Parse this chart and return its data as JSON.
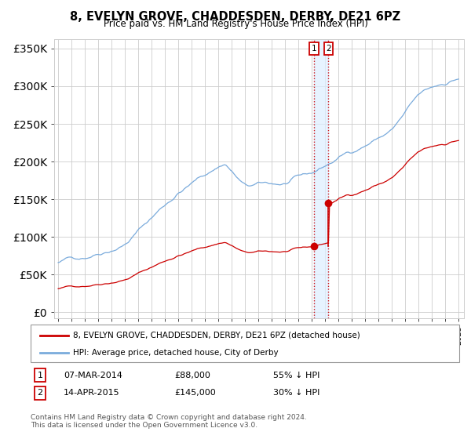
{
  "title": "8, EVELYN GROVE, CHADDESDEN, DERBY, DE21 6PZ",
  "subtitle": "Price paid vs. HM Land Registry's House Price Index (HPI)",
  "yticks": [
    0,
    50000,
    100000,
    150000,
    200000,
    250000,
    300000,
    350000
  ],
  "sale1_date": "07-MAR-2014",
  "sale1_price": 88000,
  "sale1_pct": "55% ↓ HPI",
  "sale2_date": "14-APR-2015",
  "sale2_price": 145000,
  "sale2_pct": "30% ↓ HPI",
  "sale1_year": 2014.18,
  "sale2_year": 2015.29,
  "red_line_color": "#cc0000",
  "blue_line_color": "#7aabdc",
  "marker_color": "#cc0000",
  "vline_color": "#cc0000",
  "shade_color": "#ddeeff",
  "legend_label_red": "8, EVELYN GROVE, CHADDESDEN, DERBY, DE21 6PZ (detached house)",
  "legend_label_blue": "HPI: Average price, detached house, City of Derby",
  "footer": "Contains HM Land Registry data © Crown copyright and database right 2024.\nThis data is licensed under the Open Government Licence v3.0.",
  "xmin": 1995,
  "xmax": 2025
}
